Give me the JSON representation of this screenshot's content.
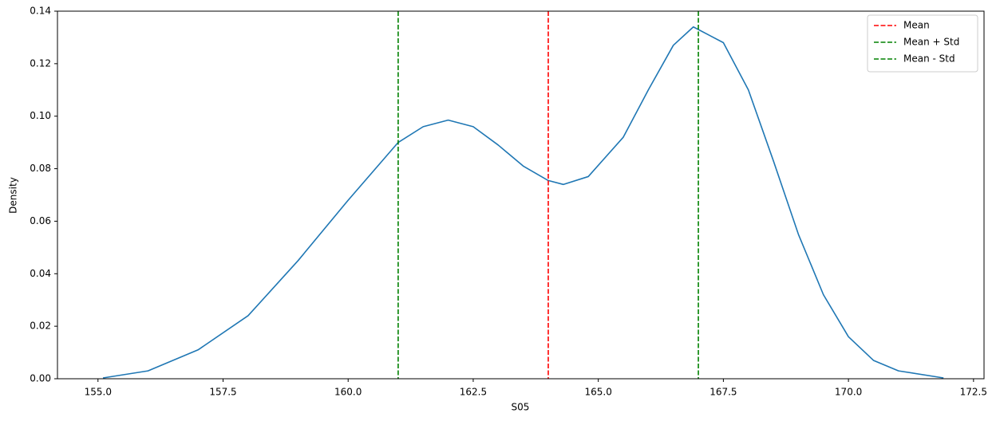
{
  "chart_data": {
    "type": "line",
    "xlabel": "S05",
    "ylabel": "Density",
    "series": [
      {
        "name": "S05",
        "color": "#1f77b4",
        "x": [
          155.1,
          156.0,
          157.0,
          158.0,
          159.0,
          160.0,
          161.0,
          161.5,
          162.0,
          162.5,
          163.0,
          163.5,
          164.0,
          164.3,
          164.8,
          165.5,
          166.0,
          166.5,
          166.9,
          167.5,
          168.0,
          168.5,
          169.0,
          169.5,
          170.0,
          170.5,
          171.0,
          171.9
        ],
        "values": [
          0.0003,
          0.003,
          0.011,
          0.024,
          0.045,
          0.068,
          0.09,
          0.096,
          0.0985,
          0.096,
          0.089,
          0.081,
          0.0755,
          0.074,
          0.077,
          0.092,
          0.11,
          0.127,
          0.134,
          0.128,
          0.11,
          0.083,
          0.055,
          0.032,
          0.016,
          0.007,
          0.003,
          0.0003
        ]
      }
    ],
    "vlines": [
      {
        "name": "Mean",
        "color": "#ff0000",
        "x": 164.0
      },
      {
        "name": "Mean + Std",
        "color": "#008000",
        "x": 167.0
      },
      {
        "name": "Mean - Std",
        "color": "#008000",
        "x": 161.0
      }
    ],
    "xlim": [
      154.19,
      172.71
    ],
    "ylim": [
      0,
      0.14
    ],
    "xticks": [
      {
        "value": 155,
        "label": "155.0"
      },
      {
        "value": 157.5,
        "label": "157.5"
      },
      {
        "value": 160,
        "label": "160.0"
      },
      {
        "value": 162.5,
        "label": "162.5"
      },
      {
        "value": 165,
        "label": "165.0"
      },
      {
        "value": 167.5,
        "label": "167.5"
      },
      {
        "value": 170,
        "label": "170.0"
      },
      {
        "value": 172.5,
        "label": "172.5"
      }
    ],
    "yticks": [
      {
        "value": 0,
        "label": "0.00"
      },
      {
        "value": 0.02,
        "label": "0.02"
      },
      {
        "value": 0.04,
        "label": "0.04"
      },
      {
        "value": 0.06,
        "label": "0.06"
      },
      {
        "value": 0.08,
        "label": "0.08"
      },
      {
        "value": 0.1,
        "label": "0.10"
      },
      {
        "value": 0.12,
        "label": "0.12"
      },
      {
        "value": 0.14,
        "label": "0.14"
      }
    ],
    "grid": false,
    "legend": "upper right"
  }
}
